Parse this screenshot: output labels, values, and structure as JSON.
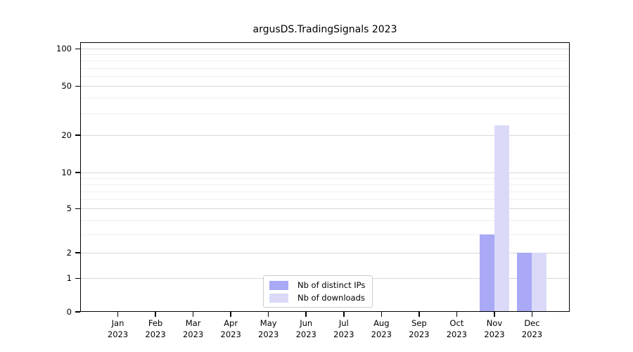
{
  "chart_data": {
    "type": "bar",
    "title": "argusDS.TradingSignals 2023",
    "categories": [
      "Jan",
      "Feb",
      "Mar",
      "Apr",
      "May",
      "Jun",
      "Jul",
      "Aug",
      "Sep",
      "Oct",
      "Nov",
      "Dec"
    ],
    "category_year": "2023",
    "series": [
      {
        "name": "Nb of distinct IPs",
        "color": "#a9a9f6",
        "values": [
          0,
          0,
          0,
          0,
          0,
          0,
          0,
          0,
          0,
          0,
          3,
          2
        ]
      },
      {
        "name": "Nb of downloads",
        "color": "#dadaf8",
        "values": [
          0,
          0,
          0,
          0,
          0,
          0,
          0,
          0,
          0,
          0,
          24,
          2
        ]
      }
    ],
    "xlabel": "",
    "ylabel": "",
    "yscale": "asinh",
    "asinh_linear_width": 1.5,
    "ylim": [
      0,
      113
    ],
    "yticks": [
      0,
      1,
      2,
      5,
      10,
      20,
      50,
      100
    ],
    "yticks_minor": [
      3,
      4,
      6,
      7,
      8,
      9,
      30,
      40,
      60,
      70,
      80,
      90
    ],
    "grid": true,
    "legend_position": "lower center"
  },
  "colors": {
    "axis": "#000000",
    "grid_major": "#d8d8d8",
    "grid_minor": "#efefef",
    "legend_border": "#cccccc",
    "background": "#ffffff"
  }
}
